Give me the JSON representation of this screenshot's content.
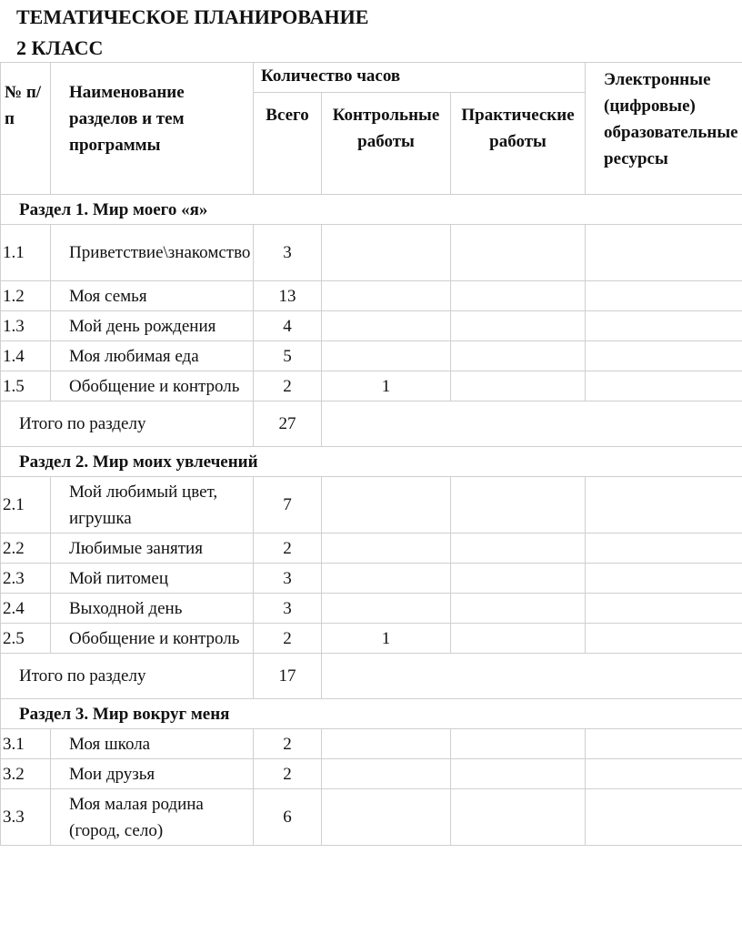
{
  "title": [
    "ТЕМАТИЧЕСКОЕ ПЛАНИРОВАНИЕ",
    "2 КЛАСС"
  ],
  "headers": {
    "num": "№ п/п",
    "name": "Наименование разделов и тем программы",
    "hours": "Количество часов",
    "total": "Всего",
    "control": "Контрольные работы",
    "practical": "Практические работы",
    "resources": "Электронные (цифровые) образовательные ресурсы"
  },
  "sections": [
    {
      "title": "Раздел 1. Мир моего «я»",
      "rows": [
        {
          "num": "1.1",
          "name": "Приветствие\\знакомство",
          "total": "3",
          "control": ""
        },
        {
          "num": "1.2",
          "name": "Моя семья",
          "total": "13",
          "control": ""
        },
        {
          "num": "1.3",
          "name": "Мой день рождения",
          "total": "4",
          "control": ""
        },
        {
          "num": "1.4",
          "name": "Моя любимая еда",
          "total": "5",
          "control": ""
        },
        {
          "num": "1.5",
          "name": "Обобщение и контроль",
          "total": "2",
          "control": "1"
        }
      ],
      "subtotal_label": "Итого по разделу",
      "subtotal": "27"
    },
    {
      "title": "Раздел 2. Мир моих увлечений",
      "rows": [
        {
          "num": "2.1",
          "name": "Мой любимый цвет, игрушка",
          "total": "7",
          "control": ""
        },
        {
          "num": "2.2",
          "name": "Любимые занятия",
          "total": "2",
          "control": ""
        },
        {
          "num": "2.3",
          "name": "Мой питомец",
          "total": "3",
          "control": ""
        },
        {
          "num": "2.4",
          "name": "Выходной день",
          "total": "3",
          "control": ""
        },
        {
          "num": "2.5",
          "name": "Обобщение и контроль",
          "total": "2",
          "control": "1"
        }
      ],
      "subtotal_label": "Итого по разделу",
      "subtotal": "17"
    },
    {
      "title": "Раздел 3. Мир вокруг меня",
      "rows": [
        {
          "num": "3.1",
          "name": "Моя школа",
          "total": "2",
          "control": ""
        },
        {
          "num": "3.2",
          "name": "Мои друзья",
          "total": "2",
          "control": ""
        },
        {
          "num": "3.3",
          "name": "Моя малая родина (город, село)",
          "total": "6",
          "control": ""
        }
      ]
    }
  ]
}
